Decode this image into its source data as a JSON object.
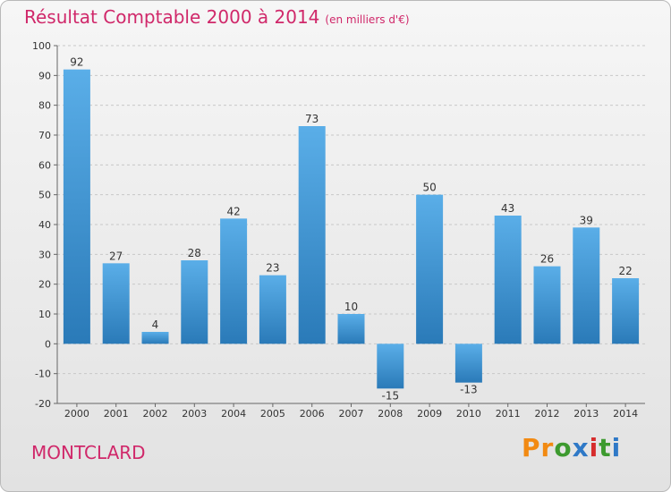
{
  "header": {
    "title": "Résultat Comptable 2000 à 2014",
    "subtitle": "(en milliers d'€)"
  },
  "footer": {
    "location": "MONTCLARD",
    "logo": [
      "P",
      "r",
      "o",
      "x",
      "i",
      "t",
      "i"
    ]
  },
  "colors": {
    "title": "#d0286a",
    "bar_top": "#5aaee8",
    "bar_bottom": "#2a7ab8",
    "logo": [
      "#f28a12",
      "#f28a12",
      "#3d9a2f",
      "#2f79c7",
      "#d62c2c",
      "#3d9a2f",
      "#2f79c7"
    ]
  },
  "chart_data": {
    "type": "bar",
    "categories": [
      "2000",
      "2001",
      "2002",
      "2003",
      "2004",
      "2005",
      "2006",
      "2007",
      "2008",
      "2009",
      "2010",
      "2011",
      "2012",
      "2013",
      "2014"
    ],
    "values": [
      92,
      27,
      4,
      28,
      42,
      23,
      73,
      10,
      -15,
      50,
      -13,
      43,
      26,
      39,
      22
    ],
    "ylim": [
      -20,
      100
    ],
    "yticks": [
      -20,
      -10,
      0,
      10,
      20,
      30,
      40,
      50,
      60,
      70,
      80,
      90,
      100
    ],
    "grid": "horizontal dashed",
    "legend": "none"
  }
}
